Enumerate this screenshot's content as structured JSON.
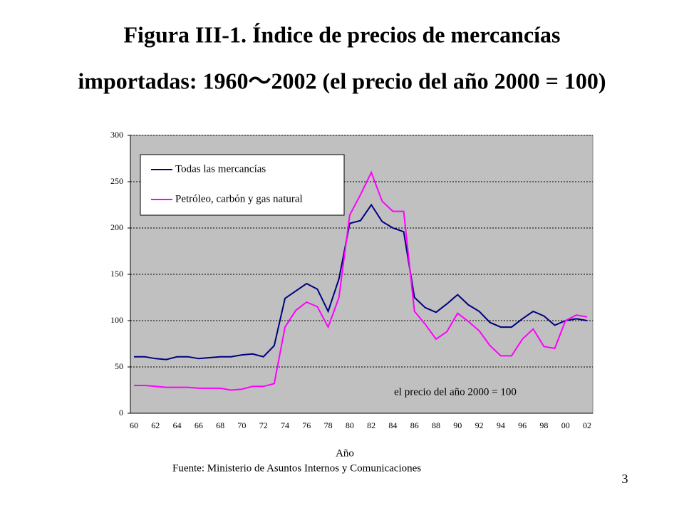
{
  "chart_data": {
    "type": "line",
    "title": [
      "Figura III-1. Índice de precios de mercancías",
      "importadas: 1960～2002 (el precio del año 2000 = 100)"
    ],
    "xlabel": "Año",
    "source": "Fuente: Ministerio de Asuntos Internos y Comunicaciones",
    "annotation": "el precio del año 2000 = 100",
    "page_number": "3",
    "categories": [
      "60",
      null,
      "62",
      null,
      "64",
      null,
      "66",
      null,
      "68",
      null,
      "70",
      null,
      "72",
      null,
      "74",
      null,
      "76",
      null,
      "78",
      null,
      "80",
      null,
      "82",
      null,
      "84",
      null,
      "86",
      null,
      "88",
      null,
      "90",
      null,
      "92",
      null,
      "94",
      null,
      "96",
      null,
      "98",
      null,
      "00",
      null,
      "02"
    ],
    "series": [
      {
        "name": "Todas las mercancías",
        "color": "#000080",
        "values": [
          61,
          61,
          59,
          58,
          61,
          61,
          59,
          60,
          61,
          61,
          63,
          64,
          61,
          73,
          124,
          132,
          140,
          134,
          110,
          145,
          205,
          208,
          225,
          207,
          200,
          196,
          125,
          114,
          109,
          118,
          128,
          117,
          110,
          98,
          93,
          93,
          102,
          110,
          105,
          95,
          100,
          102,
          100
        ]
      },
      {
        "name": "Petróleo, carbón y gas natural",
        "color": "#ff00ff",
        "values": [
          30,
          30,
          29,
          28,
          28,
          28,
          27,
          27,
          27,
          25,
          26,
          29,
          29,
          32,
          93,
          111,
          120,
          115,
          93,
          125,
          214,
          236,
          260,
          229,
          218,
          218,
          110,
          96,
          80,
          88,
          108,
          99,
          89,
          73,
          62,
          62,
          80,
          91,
          72,
          70,
          100,
          106,
          104
        ]
      }
    ],
    "ylim": [
      0,
      300
    ],
    "yticks": [
      0,
      50,
      100,
      150,
      200,
      250,
      300
    ],
    "grid": true,
    "legend": "upper left",
    "background": "#c0c0c0"
  }
}
